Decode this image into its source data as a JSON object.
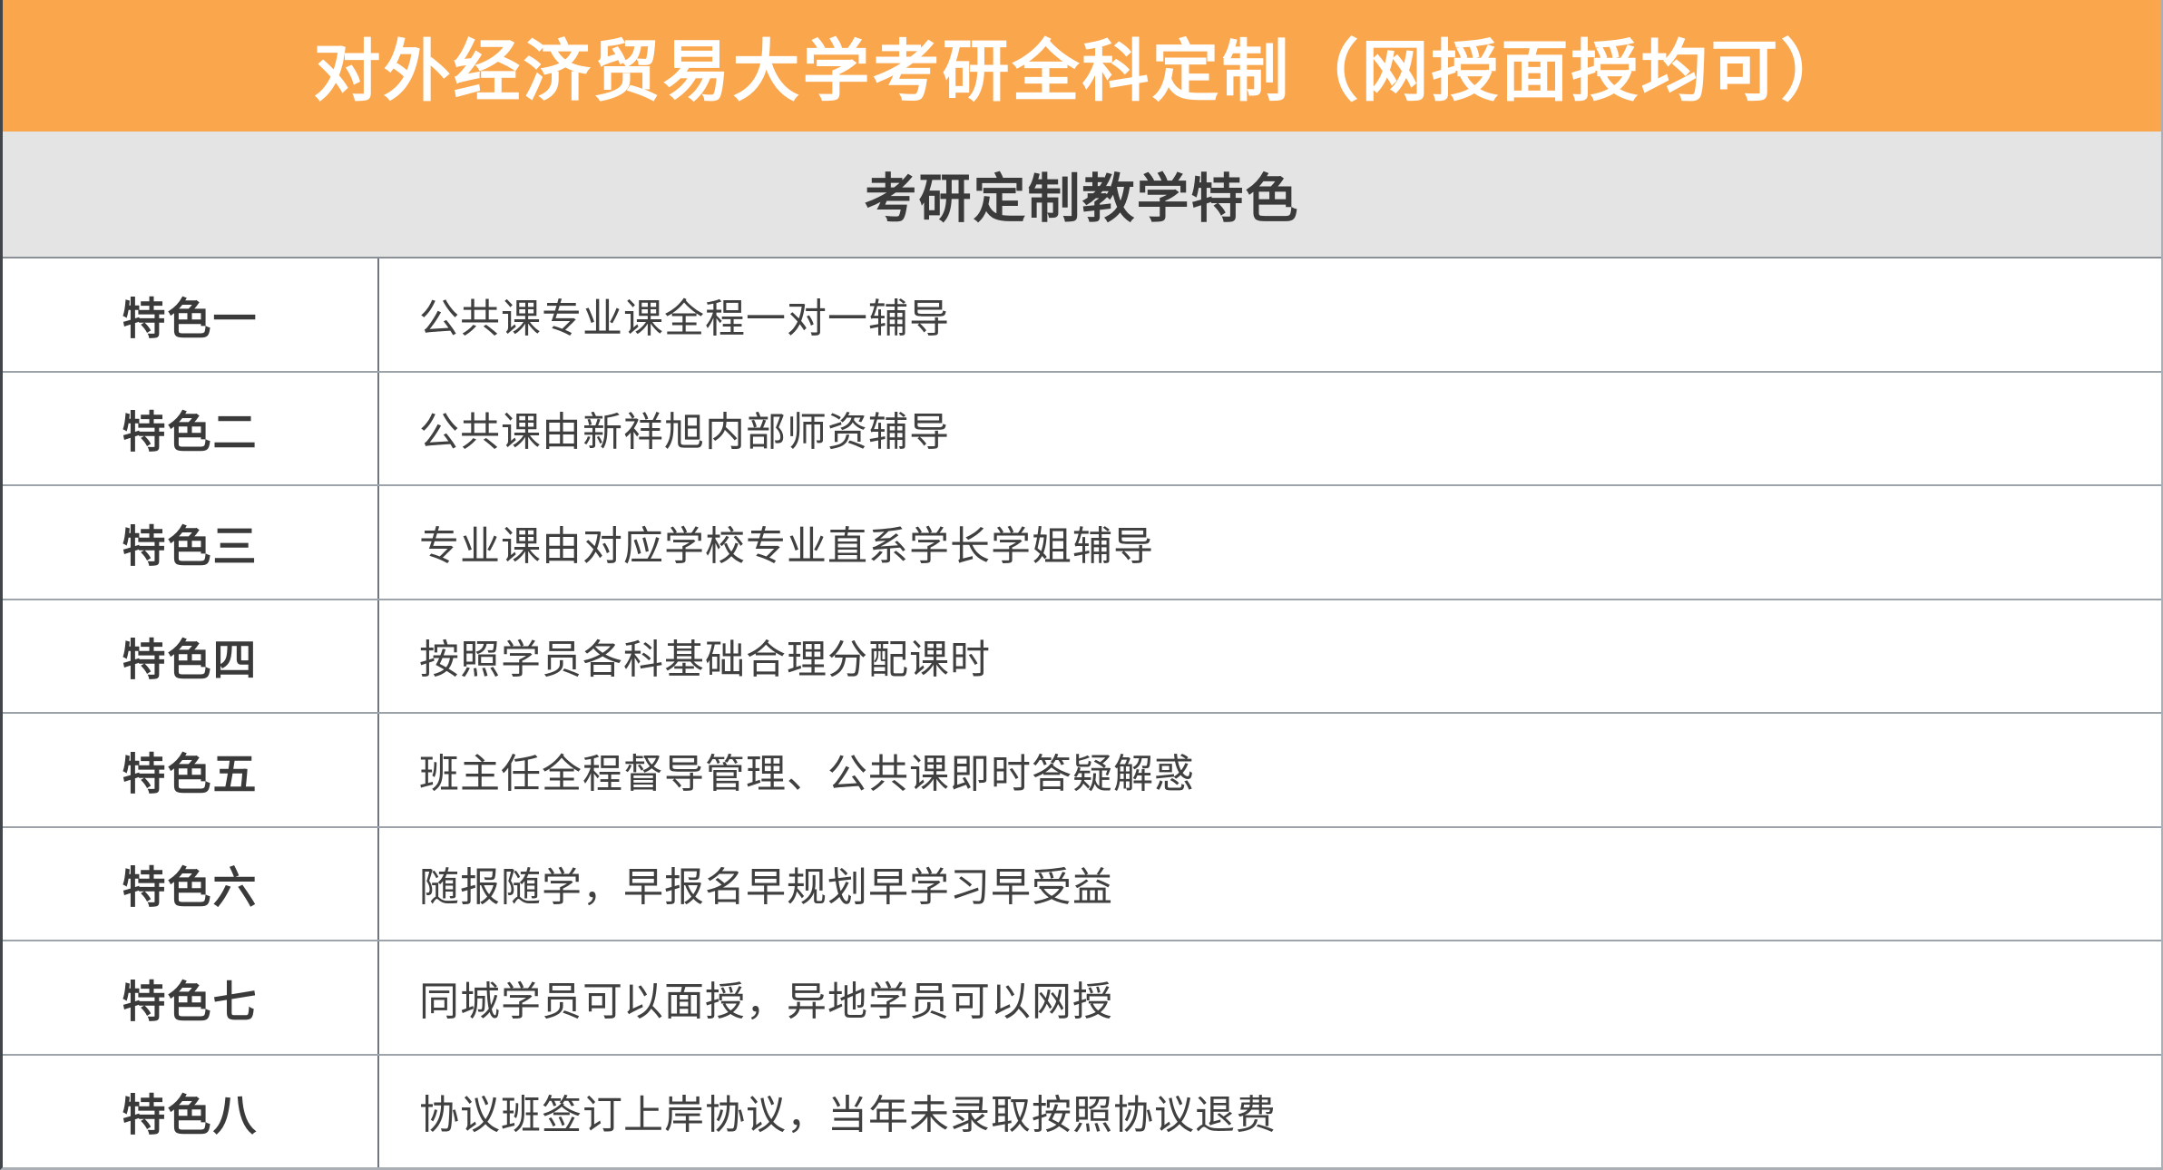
{
  "banner": {
    "title": "对外经济贸易大学考研全科定制（网授面授均可）"
  },
  "subheader": {
    "title": "考研定制教学特色"
  },
  "table": {
    "rows": [
      {
        "label": "特色一",
        "desc": "公共课专业课全程一对一辅导"
      },
      {
        "label": "特色二",
        "desc": "公共课由新祥旭内部师资辅导"
      },
      {
        "label": "特色三",
        "desc": "专业课由对应学校专业直系学长学姐辅导"
      },
      {
        "label": "特色四",
        "desc": "按照学员各科基础合理分配课时"
      },
      {
        "label": "特色五",
        "desc": "班主任全程督导管理、公共课即时答疑解惑"
      },
      {
        "label": "特色六",
        "desc": "随报随学，早报名早规划早学习早受益"
      },
      {
        "label": "特色七",
        "desc": "同城学员可以面授，异地学员可以网授"
      },
      {
        "label": "特色八",
        "desc": "协议班签订上岸协议，当年未录取按照协议退费"
      }
    ]
  },
  "colors": {
    "banner_bg": "#F9A64C",
    "banner_text": "#FFFFFF",
    "subheader_bg": "#E4E4E4",
    "text_dark": "#3A3A3A",
    "row_border": "#9CA3AB",
    "column_divider": "#70767D",
    "outer_border_left": "#42464B"
  }
}
